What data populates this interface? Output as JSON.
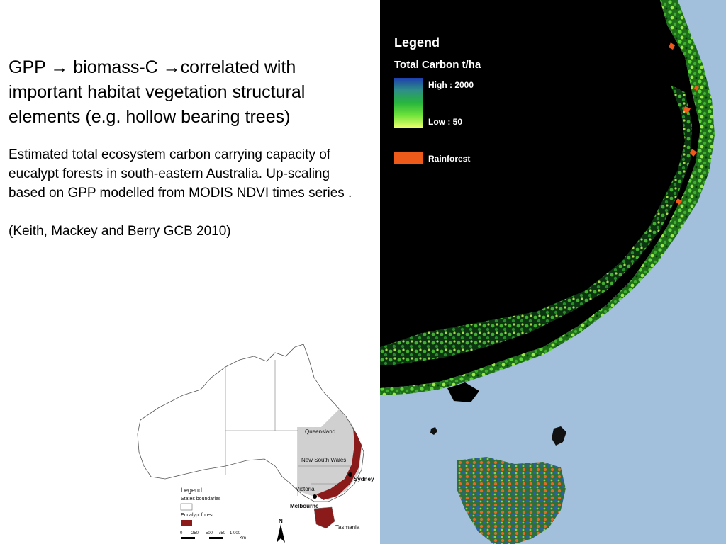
{
  "text": {
    "heading_part1": "GPP",
    "heading_arrow1": "→",
    "heading_part2": " biomass-C ",
    "heading_arrow2": "→",
    "heading_part3": "correlated with important habitat vegetation structural elements (e.g. hollow bearing trees)",
    "description": "Estimated total ecosystem carbon carrying capacity of eucalypt forests in south-eastern Australia. Up-scaling based on GPP modelled from MODIS NDVI times series .",
    "citation": "(Keith, Mackey and Berry GCB 2010)"
  },
  "map_legend": {
    "title": "Legend",
    "subtitle": "Total Carbon t/ha",
    "high": "High : 2000",
    "low": "Low : 50",
    "rainforest": "Rainforest",
    "colors": {
      "high": "#1d3fae",
      "mid": "#27b53d",
      "low": "#eaff6a",
      "rainforest": "#ee5a1a",
      "sea": "#a2c0dc",
      "land": "#000000"
    }
  },
  "inset_map": {
    "states": {
      "queensland": "Queensland",
      "nsw": "New South Wales",
      "victoria": "Victoria",
      "tasmania": "Tasmania"
    },
    "cities": {
      "sydney": "Sydney",
      "melbourne": "Melbourne"
    },
    "legend": {
      "title": "Legend",
      "boundaries": "States boundaries",
      "forest": "Eucalypt forest"
    },
    "scale_ticks": [
      "0",
      "250",
      "500",
      "750",
      "1,000"
    ],
    "scale_unit": "Km",
    "north": "N",
    "colors": {
      "forest": "#8b1a1a",
      "highlight": "#d0d0d0"
    }
  }
}
